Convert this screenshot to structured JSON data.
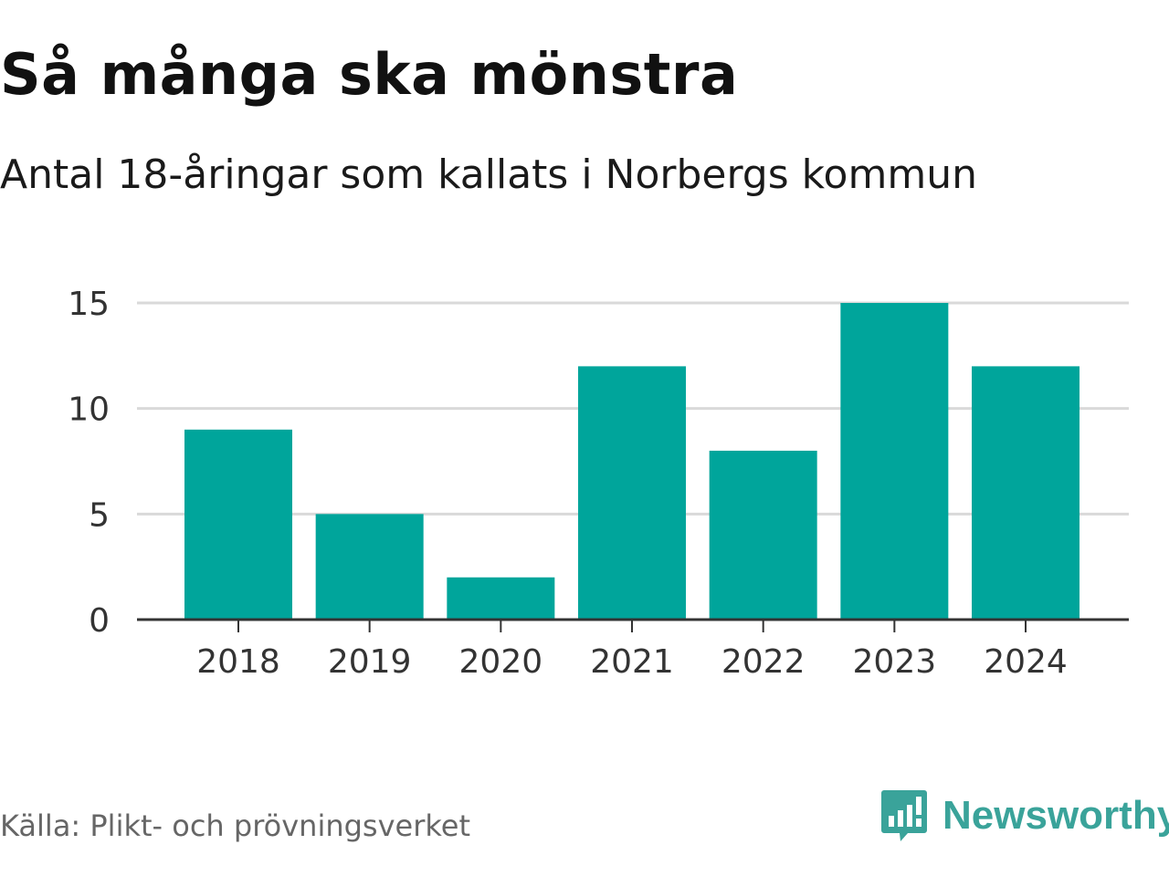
{
  "header": {
    "title": "Så många ska mönstra",
    "subtitle": "Antal 18-åringar som kallats i Norbergs kommun"
  },
  "footer": {
    "source": "Källa: Plikt- och prövningsverket",
    "brand": "Newsworthy",
    "brand_icon": "newsworthy-logo-icon"
  },
  "colors": {
    "bar": "#00a59b",
    "grid": "#d9d9d9",
    "axis": "#333333",
    "brand": "#3aa39a"
  },
  "chart_data": {
    "type": "bar",
    "title": "Så många ska mönstra",
    "subtitle": "Antal 18-åringar som kallats i Norbergs kommun",
    "xlabel": "",
    "ylabel": "",
    "categories": [
      "2018",
      "2019",
      "2020",
      "2021",
      "2022",
      "2023",
      "2024"
    ],
    "values": [
      9,
      5,
      2,
      12,
      8,
      15,
      12
    ],
    "ylim": [
      0,
      15
    ],
    "yticks": [
      0,
      5,
      10,
      15
    ],
    "grid": true,
    "legend": "none"
  }
}
